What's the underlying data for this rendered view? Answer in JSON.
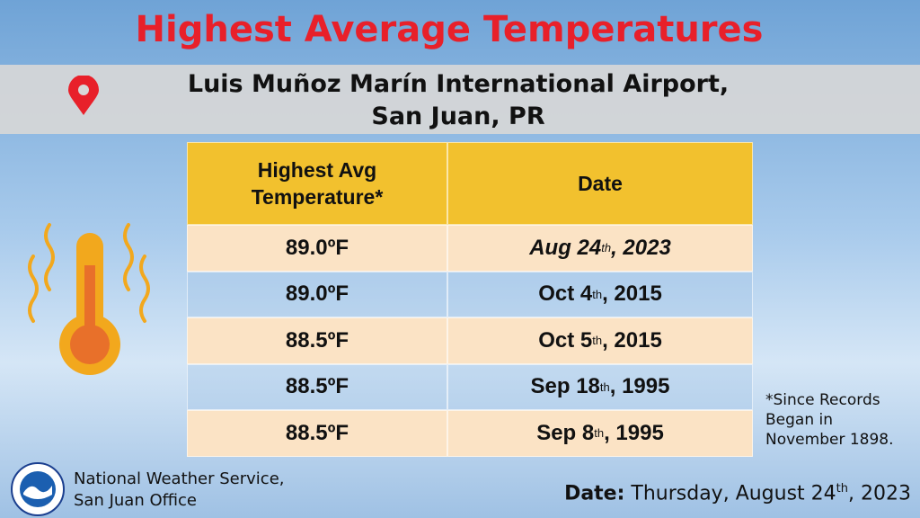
{
  "header": {
    "title": "Highest Average Temperatures",
    "location": [
      "Luis Muñoz Marín International Airport,",
      "San Juan, PR"
    ]
  },
  "table": {
    "columns": [
      "Highest Avg Temperature*",
      "Date"
    ],
    "rows": [
      {
        "temperature": "89.0ºF",
        "date": [
          "Aug 24",
          "th",
          ", 2023"
        ]
      },
      {
        "temperature": "89.0ºF",
        "date": [
          "Oct 4",
          "th",
          ", 2015"
        ]
      },
      {
        "temperature": "88.5ºF",
        "date": [
          "Oct 5",
          "th",
          ", 2015"
        ]
      },
      {
        "temperature": "88.5ºF",
        "date": [
          "Sep 18",
          "th",
          ", 1995"
        ]
      },
      {
        "temperature": "88.5ºF",
        "date": [
          "Sep 8",
          "th",
          ", 1995"
        ]
      }
    ]
  },
  "note": "*Since Records Began in November 1898.",
  "footer": {
    "office": [
      "National Weather Service,",
      "San Juan Office"
    ],
    "date_label": "Date:",
    "date": [
      "Thursday, August 24",
      "th",
      ", 2023"
    ]
  }
}
